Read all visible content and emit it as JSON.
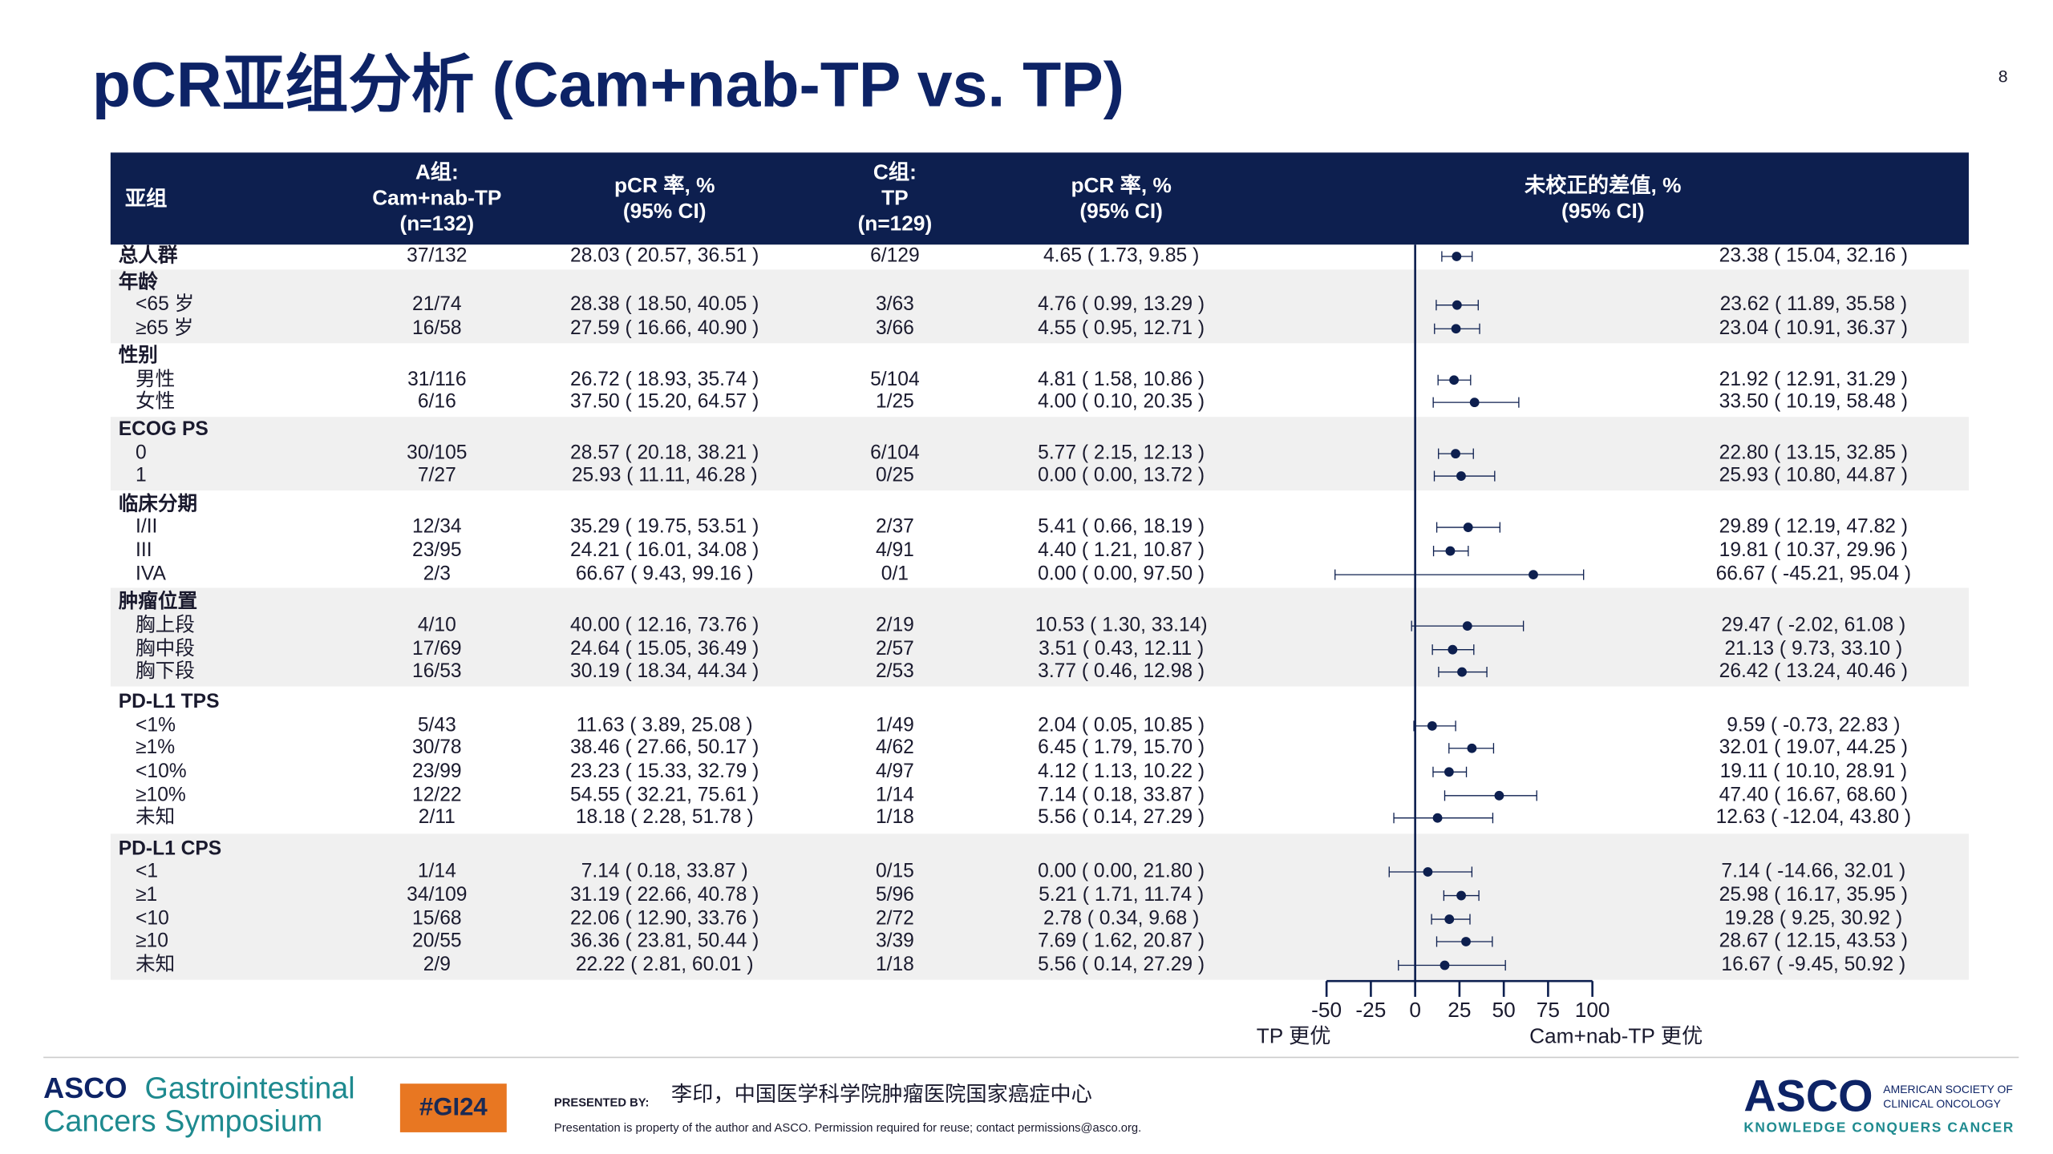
{
  "header": {
    "title": "pCR亚组分析 (Cam+nab-TP vs. TP)",
    "page_number": "8"
  },
  "table": {
    "headers": [
      [
        "亚组"
      ],
      [
        "A组:",
        "Cam+nab-TP",
        "(n=132)"
      ],
      [
        "pCR 率, %",
        "(95% CI)"
      ],
      [
        "C组:",
        "TP",
        "(n=129)"
      ],
      [
        "pCR 率, %",
        "(95% CI)"
      ],
      [
        "未校正的差值, %",
        "(95% CI)"
      ]
    ],
    "rows": [
      [
        "总人群",
        "37/132",
        "28.03 ( 20.57, 36.51 )",
        "6/129",
        "4.65 ( 1.73, 9.85 )"
      ],
      [
        "年龄"
      ],
      [
        "<65 岁",
        "21/74",
        "28.38 ( 18.50, 40.05 )",
        "3/63",
        "4.76 ( 0.99, 13.29 )"
      ],
      [
        "≥65 岁",
        "16/58",
        "27.59 ( 16.66, 40.90 )",
        "3/66",
        "4.55 ( 0.95, 12.71 )"
      ],
      [
        "性别"
      ],
      [
        "男性",
        "31/116",
        "26.72 ( 18.93, 35.74 )",
        "5/104",
        "4.81 ( 1.58, 10.86 )"
      ],
      [
        "女性",
        "6/16",
        "37.50 ( 15.20, 64.57 )",
        "1/25",
        "4.00 ( 0.10, 20.35 )"
      ],
      [
        "ECOG PS"
      ],
      [
        "0",
        "30/105",
        "28.57 ( 20.18, 38.21 )",
        "6/104",
        "5.77 ( 2.15, 12.13 )"
      ],
      [
        "1",
        "7/27",
        "25.93 ( 11.11, 46.28 )",
        "0/25",
        "0.00 ( 0.00, 13.72 )"
      ],
      [
        "临床分期"
      ],
      [
        "I/II",
        "12/34",
        "35.29 ( 19.75, 53.51 )",
        "2/37",
        "5.41 ( 0.66, 18.19 )"
      ],
      [
        "III",
        "23/95",
        "24.21 ( 16.01, 34.08 )",
        "4/91",
        "4.40 ( 1.21, 10.87 )"
      ],
      [
        "IVA",
        "2/3",
        "66.67 ( 9.43, 99.16 )",
        "0/1",
        "0.00 ( 0.00, 97.50 )"
      ],
      [
        "肿瘤位置"
      ],
      [
        "胸上段",
        "4/10",
        "40.00 ( 12.16, 73.76 )",
        "2/19",
        "10.53 ( 1.30, 33.14)"
      ],
      [
        "胸中段",
        "17/69",
        "24.64 ( 15.05, 36.49 )",
        "2/57",
        "3.51 ( 0.43, 12.11 )"
      ],
      [
        "胸下段",
        "16/53",
        "30.19 ( 18.34, 44.34 )",
        "2/53",
        "3.77 ( 0.46, 12.98 )"
      ],
      [
        "PD-L1 TPS"
      ],
      [
        "<1%",
        "5/43",
        "11.63 ( 3.89, 25.08 )",
        "1/49",
        "2.04 ( 0.05, 10.85 )"
      ],
      [
        "≥1%",
        "30/78",
        "38.46 ( 27.66, 50.17 )",
        "4/62",
        "6.45 ( 1.79, 15.70 )"
      ],
      [
        "<10%",
        "23/99",
        "23.23 ( 15.33, 32.79 )",
        "4/97",
        "4.12 ( 1.13, 10.22 )"
      ],
      [
        "≥10%",
        "12/22",
        "54.55 ( 32.21, 75.61 )",
        "1/14",
        "7.14 ( 0.18, 33.87 )"
      ],
      [
        "未知",
        "2/11",
        "18.18 ( 2.28, 51.78 )",
        "1/18",
        "5.56 ( 0.14, 27.29 )"
      ],
      [
        "PD-L1 CPS"
      ],
      [
        "<1",
        "1/14",
        "7.14 ( 0.18, 33.87 )",
        "0/15",
        "0.00 ( 0.00, 21.80 )"
      ],
      [
        "≥1",
        "34/109",
        "31.19 ( 22.66, 40.78 )",
        "5/96",
        "5.21 ( 1.71, 11.74 )"
      ],
      [
        "<10",
        "15/68",
        "22.06 ( 12.90, 33.76 )",
        "2/72",
        "2.78 ( 0.34, 9.68 )"
      ],
      [
        "≥10",
        "20/55",
        "36.36 ( 23.81, 50.44 )",
        "3/39",
        "7.69 ( 1.62, 20.87 )"
      ],
      [
        "未知",
        "2/9",
        "22.22 ( 2.81, 60.01 )",
        "1/18",
        "5.56 ( 0.14, 27.29 )"
      ]
    ]
  },
  "chart_data": {
    "type": "forest",
    "values": [
      23.38,
      null,
      23.62,
      23.04,
      null,
      21.92,
      33.5,
      null,
      22.8,
      25.93,
      null,
      29.89,
      19.81,
      66.67,
      null,
      29.47,
      21.13,
      26.42,
      null,
      9.59,
      32.01,
      19.11,
      47.4,
      12.63,
      null,
      7.14,
      25.98,
      19.28,
      28.67,
      16.67
    ],
    "lower": [
      15.04,
      null,
      11.89,
      10.91,
      null,
      12.91,
      10.19,
      null,
      13.15,
      10.8,
      null,
      12.19,
      10.37,
      -45.21,
      null,
      -2.02,
      9.73,
      13.24,
      null,
      -0.73,
      19.07,
      10.1,
      16.67,
      -12.04,
      null,
      -14.66,
      16.17,
      9.25,
      12.15,
      -9.45
    ],
    "upper": [
      32.16,
      null,
      35.58,
      36.37,
      null,
      31.29,
      58.48,
      null,
      32.85,
      44.87,
      null,
      47.82,
      29.96,
      95.04,
      null,
      61.08,
      33.1,
      40.46,
      null,
      22.83,
      44.25,
      28.91,
      68.6,
      43.8,
      null,
      32.01,
      35.95,
      30.92,
      43.53,
      50.92
    ],
    "value_labels": [
      "23.38 ( 15.04, 32.16 )",
      null,
      "23.62 ( 11.89, 35.58 )",
      "23.04 ( 10.91, 36.37 )",
      null,
      "21.92 ( 12.91, 31.29 )",
      "33.50 ( 10.19, 58.48 )",
      null,
      "22.80 ( 13.15, 32.85 )",
      "25.93 ( 10.80, 44.87 )",
      null,
      "29.89 ( 12.19, 47.82 )",
      "19.81 ( 10.37, 29.96 )",
      "66.67 ( -45.21, 95.04 )",
      null,
      "29.47 ( -2.02, 61.08 )",
      "21.13 ( 9.73, 33.10 )",
      "26.42 ( 13.24, 40.46 )",
      null,
      "9.59 ( -0.73, 22.83 )",
      "32.01 ( 19.07, 44.25 )",
      "19.11 ( 10.10, 28.91 )",
      "47.40 ( 16.67, 68.60 )",
      "12.63 ( -12.04, 43.80 )",
      null,
      "7.14 ( -14.66, 32.01 )",
      "25.98 ( 16.17, 35.95 )",
      "19.28 ( 9.25, 30.92 )",
      "28.67 ( 12.15, 43.53 )",
      "16.67 ( -9.45, 50.92 )"
    ],
    "xlim": [
      -50,
      100
    ],
    "xticks": [
      -50,
      -25,
      0,
      25,
      50,
      75,
      100
    ],
    "x_label_left": "TP 更优",
    "x_label_right": "Cam+nab-TP 更优",
    "color": "#0d1f4f"
  },
  "footer": {
    "logo": [
      "ASCO",
      "Gastrointestinal",
      "Cancers Symposium"
    ],
    "hashtag": "#GI24",
    "presented_by": "PRESENTED BY:",
    "presenter": "李印，中国医学科学院肿瘤医院国家癌症中心",
    "disclaimer": "Presentation is property of the author and ASCO. Permission required for reuse; contact permissions@asco.org.",
    "asco": "ASCO",
    "society": [
      "AMERICAN SOCIETY OF",
      "CLINICAL ONCOLOGY"
    ],
    "tagline": "KNOWLEDGE CONQUERS CANCER"
  }
}
